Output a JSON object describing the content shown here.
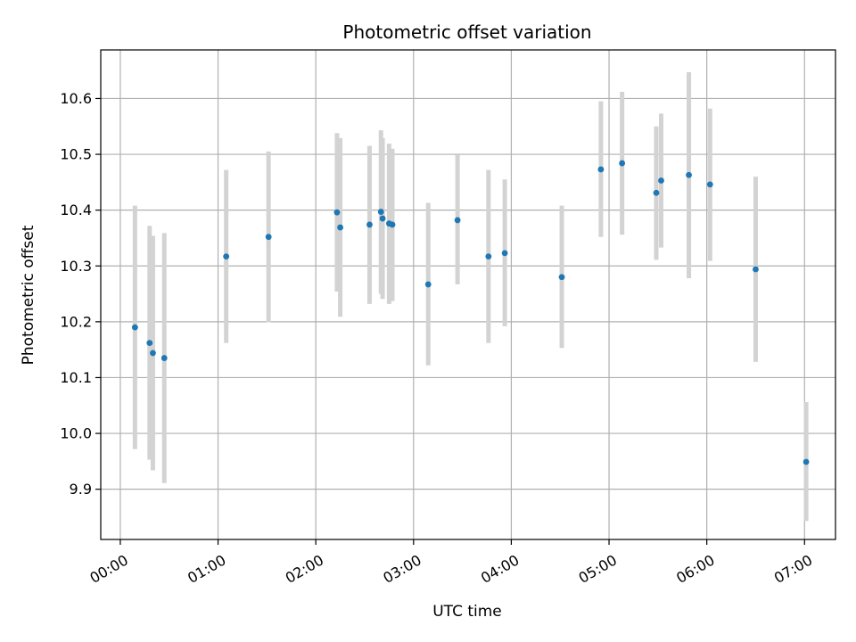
{
  "chart_data": {
    "type": "scatter",
    "title": "Photometric offset variation",
    "xlabel": "UTC time",
    "ylabel": "Photometric offset",
    "x_tick_labels": [
      "00:00",
      "01:00",
      "02:00",
      "03:00",
      "04:00",
      "05:00",
      "06:00",
      "07:00"
    ],
    "x_ticks_minutes": [
      0,
      60,
      120,
      180,
      240,
      300,
      360,
      420
    ],
    "xlim_minutes": [
      -12,
      439
    ],
    "y_ticks": [
      9.9,
      10.0,
      10.1,
      10.2,
      10.3,
      10.4,
      10.5,
      10.6
    ],
    "ylim": [
      9.81,
      10.687
    ],
    "grid": true,
    "colors": {
      "point": "#1f77b4",
      "errorbar": "#d3d3d3",
      "grid": "#b0b0b0"
    },
    "series": [
      {
        "points": [
          {
            "t": "00:09",
            "y": 10.19,
            "lo": 9.972,
            "hi": 10.408
          },
          {
            "t": "00:18",
            "y": 10.162,
            "lo": 9.953,
            "hi": 10.372
          },
          {
            "t": "00:20",
            "y": 10.144,
            "lo": 9.934,
            "hi": 10.354
          },
          {
            "t": "00:27",
            "y": 10.135,
            "lo": 9.911,
            "hi": 10.359
          },
          {
            "t": "01:05",
            "y": 10.317,
            "lo": 10.162,
            "hi": 10.472
          },
          {
            "t": "01:31",
            "y": 10.352,
            "lo": 10.199,
            "hi": 10.505
          },
          {
            "t": "02:13",
            "y": 10.396,
            "lo": 10.254,
            "hi": 10.538
          },
          {
            "t": "02:15",
            "y": 10.369,
            "lo": 10.209,
            "hi": 10.529
          },
          {
            "t": "02:33",
            "y": 10.374,
            "lo": 10.232,
            "hi": 10.515
          },
          {
            "t": "02:40",
            "y": 10.397,
            "lo": 10.25,
            "hi": 10.543
          },
          {
            "t": "02:41",
            "y": 10.385,
            "lo": 10.241,
            "hi": 10.529
          },
          {
            "t": "02:45",
            "y": 10.376,
            "lo": 10.232,
            "hi": 10.519
          },
          {
            "t": "02:47",
            "y": 10.374,
            "lo": 10.237,
            "hi": 10.51
          },
          {
            "t": "03:09",
            "y": 10.267,
            "lo": 10.122,
            "hi": 10.413
          },
          {
            "t": "03:27",
            "y": 10.382,
            "lo": 10.267,
            "hi": 10.499
          },
          {
            "t": "03:46",
            "y": 10.317,
            "lo": 10.162,
            "hi": 10.472
          },
          {
            "t": "03:56",
            "y": 10.323,
            "lo": 10.192,
            "hi": 10.455
          },
          {
            "t": "04:31",
            "y": 10.28,
            "lo": 10.153,
            "hi": 10.408
          },
          {
            "t": "04:55",
            "y": 10.473,
            "lo": 10.352,
            "hi": 10.595
          },
          {
            "t": "05:08",
            "y": 10.484,
            "lo": 10.356,
            "hi": 10.612
          },
          {
            "t": "05:29",
            "y": 10.431,
            "lo": 10.311,
            "hi": 10.55
          },
          {
            "t": "05:32",
            "y": 10.453,
            "lo": 10.333,
            "hi": 10.573
          },
          {
            "t": "05:49",
            "y": 10.463,
            "lo": 10.278,
            "hi": 10.647
          },
          {
            "t": "06:02",
            "y": 10.446,
            "lo": 10.309,
            "hi": 10.582
          },
          {
            "t": "06:30",
            "y": 10.294,
            "lo": 10.128,
            "hi": 10.46
          },
          {
            "t": "07:01",
            "y": 9.949,
            "lo": 9.843,
            "hi": 10.056
          }
        ]
      }
    ]
  }
}
